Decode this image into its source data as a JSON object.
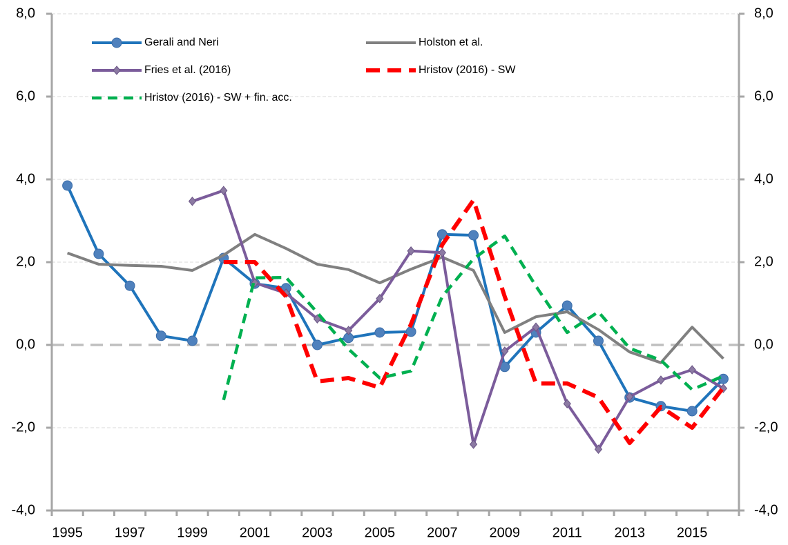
{
  "chart_data": {
    "type": "line",
    "categories": [
      "1995",
      null,
      "1997",
      null,
      "1999",
      null,
      "2001",
      null,
      "2003",
      null,
      "2005",
      null,
      "2007",
      null,
      "2009",
      null,
      "2011",
      null,
      "2013",
      null,
      "2015",
      null
    ],
    "ylim": [
      -4,
      8
    ],
    "y2lim": [
      -4,
      8
    ],
    "yticks": [
      {
        "value": -4,
        "label": "-4,0"
      },
      {
        "value": -2,
        "label": "-2,0"
      },
      {
        "value": 0,
        "label": "0,0"
      },
      {
        "value": 2,
        "label": "2,0"
      },
      {
        "value": 4,
        "label": "4,0"
      },
      {
        "value": 6,
        "label": "6,0"
      },
      {
        "value": 8,
        "label": "8,0"
      }
    ],
    "y2ticks": [
      {
        "value": -4,
        "label": "-4,0"
      },
      {
        "value": -2,
        "label": "-2,0"
      },
      {
        "value": 0,
        "label": "0,0"
      },
      {
        "value": 2,
        "label": "2,0"
      },
      {
        "value": 4,
        "label": "4,0"
      },
      {
        "value": 6,
        "label": "6,0"
      },
      {
        "value": 8,
        "label": "8,0"
      }
    ],
    "grid": true,
    "series": [
      {
        "name": "Gerali and Neri",
        "color": "#1f74bb",
        "style": "solid",
        "marker": "circle",
        "values": [
          3.85,
          2.2,
          1.43,
          0.22,
          0.1,
          2.1,
          1.48,
          1.37,
          0.0,
          0.17,
          0.3,
          0.32,
          2.67,
          2.65,
          -0.53,
          0.3,
          0.95,
          0.1,
          -1.27,
          -1.48,
          -1.6,
          -0.82
        ]
      },
      {
        "name": "Holston et al.",
        "color": "#808080",
        "style": "solid",
        "marker": null,
        "values": [
          2.22,
          1.95,
          1.92,
          1.9,
          1.8,
          2.17,
          2.67,
          2.33,
          1.95,
          1.82,
          1.5,
          1.83,
          2.12,
          1.8,
          0.3,
          0.68,
          0.8,
          0.37,
          -0.17,
          -0.43,
          0.43,
          -0.33
        ]
      },
      {
        "name": "Fries et al. (2016)",
        "color": "#7b5c9b",
        "style": "solid",
        "marker": "diamond",
        "values": [
          null,
          null,
          null,
          null,
          3.47,
          3.73,
          1.5,
          1.25,
          0.63,
          0.35,
          1.12,
          2.27,
          2.23,
          -2.4,
          -0.15,
          0.43,
          -1.42,
          -2.52,
          -1.25,
          -0.85,
          -0.6,
          -1.05
        ]
      },
      {
        "name": "Hristov (2016) - SW",
        "color": "#ff0000",
        "style": "dashed",
        "marker": null,
        "values": [
          null,
          null,
          null,
          null,
          null,
          2.0,
          2.0,
          1.17,
          -0.88,
          -0.8,
          -1.03,
          0.5,
          2.42,
          3.5,
          1.17,
          -0.93,
          -0.93,
          -1.27,
          -2.37,
          -1.5,
          -2.0,
          -1.03
        ]
      },
      {
        "name": "Hristov (2016) - SW + fin. acc.",
        "color": "#00b050",
        "style": "dashed",
        "marker": null,
        "values": [
          null,
          null,
          null,
          null,
          null,
          -1.33,
          1.62,
          1.63,
          0.78,
          -0.1,
          -0.8,
          -0.63,
          1.17,
          2.08,
          2.63,
          1.42,
          0.3,
          0.8,
          -0.08,
          -0.37,
          -1.08,
          -0.75
        ]
      }
    ]
  }
}
